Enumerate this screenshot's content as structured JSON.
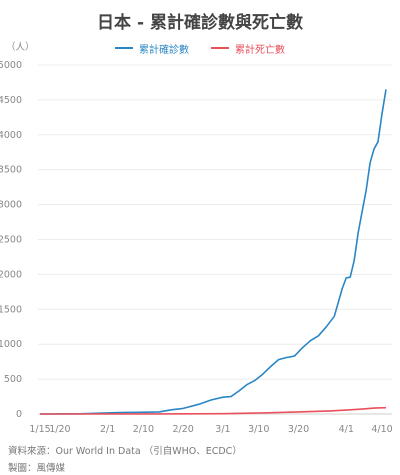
{
  "chart_data": {
    "type": "line",
    "title": "日本 - 累計確診數與死亡數",
    "unit_label": "（人）",
    "ylim": [
      0,
      5000
    ],
    "y_ticks": [
      0,
      500,
      1000,
      1500,
      2000,
      2500,
      3000,
      3500,
      4000,
      4500,
      5000
    ],
    "grid": true,
    "legend_position": "top-center",
    "x_start_date": "1/15",
    "x_end_date": "4/11",
    "x_tick_labels": [
      {
        "label": "1/15",
        "date": "1/15"
      },
      {
        "label": "1/20",
        "date": "1/20"
      },
      {
        "label": "2/1",
        "date": "2/1"
      },
      {
        "label": "2/10",
        "date": "2/10"
      },
      {
        "label": "2/20",
        "date": "2/20"
      },
      {
        "label": "3/1",
        "date": "3/1"
      },
      {
        "label": "3/10",
        "date": "3/10"
      },
      {
        "label": "3/20",
        "date": "3/20"
      },
      {
        "label": "4/1",
        "date": "4/1"
      },
      {
        "label": "4/10",
        "date": "4/10"
      }
    ],
    "series": [
      {
        "name": "累計確診數",
        "color": "#2b86c5",
        "points": [
          {
            "x": "1/15",
            "y": 0
          },
          {
            "x": "1/20",
            "y": 1
          },
          {
            "x": "1/25",
            "y": 3
          },
          {
            "x": "1/30",
            "y": 11
          },
          {
            "x": "2/4",
            "y": 20
          },
          {
            "x": "2/9",
            "y": 25
          },
          {
            "x": "2/14",
            "y": 30
          },
          {
            "x": "2/17",
            "y": 60
          },
          {
            "x": "2/20",
            "y": 80
          },
          {
            "x": "2/24",
            "y": 140
          },
          {
            "x": "2/27",
            "y": 200
          },
          {
            "x": "3/1",
            "y": 240
          },
          {
            "x": "3/3",
            "y": 250
          },
          {
            "x": "3/5",
            "y": 330
          },
          {
            "x": "3/7",
            "y": 420
          },
          {
            "x": "3/9",
            "y": 480
          },
          {
            "x": "3/11",
            "y": 570
          },
          {
            "x": "3/13",
            "y": 680
          },
          {
            "x": "3/15",
            "y": 780
          },
          {
            "x": "3/17",
            "y": 810
          },
          {
            "x": "3/19",
            "y": 830
          },
          {
            "x": "3/21",
            "y": 950
          },
          {
            "x": "3/23",
            "y": 1050
          },
          {
            "x": "3/25",
            "y": 1120
          },
          {
            "x": "3/27",
            "y": 1250
          },
          {
            "x": "3/29",
            "y": 1400
          },
          {
            "x": "3/31",
            "y": 1800
          },
          {
            "x": "4/1",
            "y": 1950
          },
          {
            "x": "4/2",
            "y": 1960
          },
          {
            "x": "4/3",
            "y": 2200
          },
          {
            "x": "4/4",
            "y": 2600
          },
          {
            "x": "4/6",
            "y": 3200
          },
          {
            "x": "4/7",
            "y": 3600
          },
          {
            "x": "4/8",
            "y": 3800
          },
          {
            "x": "4/9",
            "y": 3900
          },
          {
            "x": "4/10",
            "y": 4300
          },
          {
            "x": "4/11",
            "y": 4650
          }
        ]
      },
      {
        "name": "累計死亡數",
        "color": "#e8505b",
        "points": [
          {
            "x": "1/15",
            "y": 0
          },
          {
            "x": "2/14",
            "y": 1
          },
          {
            "x": "3/1",
            "y": 5
          },
          {
            "x": "3/10",
            "y": 15
          },
          {
            "x": "3/20",
            "y": 30
          },
          {
            "x": "3/28",
            "y": 45
          },
          {
            "x": "4/1",
            "y": 56
          },
          {
            "x": "4/5",
            "y": 70
          },
          {
            "x": "4/8",
            "y": 85
          },
          {
            "x": "4/11",
            "y": 90
          }
        ]
      }
    ]
  },
  "footer": {
    "source": "資料來源：Our World In Data （引自WHO、ECDC）",
    "credit": "製圖：風傳媒"
  }
}
